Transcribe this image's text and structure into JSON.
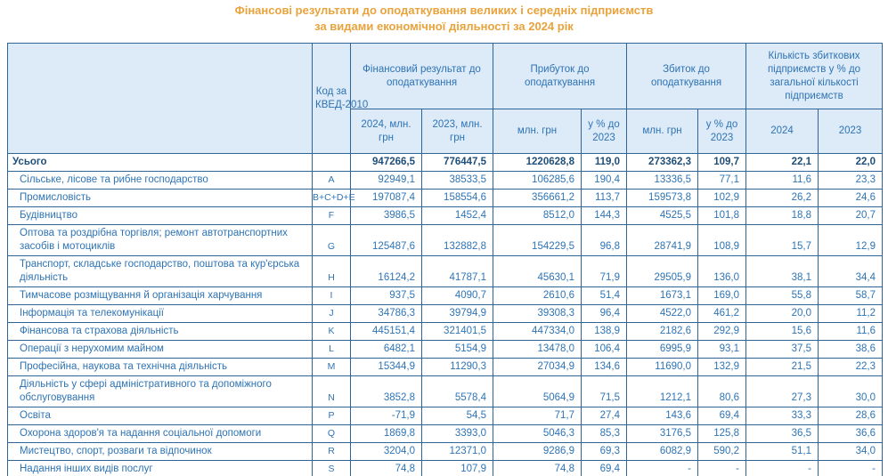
{
  "title": {
    "line1": "Фінансові результати до оподаткування великих і середніх підприємств",
    "line2": "за видами економічної діяльності за 2024 рік"
  },
  "colors": {
    "title": "#E9A33C",
    "border": "#2E6496",
    "header_bg": "#DDEAF7",
    "text": "#2E74B5",
    "text_dark": "#1F4E79"
  },
  "header": {
    "activity_label": "",
    "kved_label": "Код за КВЕД-2010",
    "groups": [
      {
        "label": "Фінансовий результат до оподаткування",
        "subs": [
          "2024, млн. грн",
          "2023, млн. грн"
        ]
      },
      {
        "label": "Прибуток до оподаткування",
        "subs": [
          "млн. грн",
          "у % до 2023"
        ]
      },
      {
        "label": "Збиток до оподаткування",
        "subs": [
          "млн. грн",
          "у % до 2023"
        ]
      },
      {
        "label": "Кількість збиткових підприємств у % до загальної кількості підприємств",
        "subs": [
          "2024",
          "2023"
        ]
      }
    ]
  },
  "chart_data": {
    "type": "table",
    "title": "Фінансові результати до оподаткування великих і середніх підприємств за видами економічної діяльності за 2024 рік",
    "columns": [
      "Вид економічної діяльності",
      "Код за КВЕД-2010",
      "Фінансовий результат до оподаткування — 2024, млн. грн",
      "Фінансовий результат до оподаткування — 2023, млн. грн",
      "Прибуток до оподаткування — млн. грн",
      "Прибуток до оподаткування — у % до 2023",
      "Збиток до оподаткування — млн. грн",
      "Збиток до оподаткування — у % до 2023",
      "Кількість збиткових підприємств у % до загальної кількості підприємств — 2024",
      "Кількість збиткових підприємств у % до загальної кількості підприємств — 2023"
    ],
    "rows": [
      {
        "name": "Усього",
        "code": "",
        "bold": true,
        "indent": false,
        "values": [
          "947266,5",
          "776447,5",
          "1220628,8",
          "119,0",
          "273362,3",
          "109,7",
          "22,1",
          "22,0"
        ]
      },
      {
        "name": "Сільське, лісове та рибне господарство",
        "code": "A",
        "bold": false,
        "indent": true,
        "values": [
          "92949,1",
          "38533,5",
          "106285,6",
          "190,4",
          "13336,5",
          "77,1",
          "11,6",
          "23,3"
        ]
      },
      {
        "name": "Промисловість",
        "code": "B+C+D+E",
        "bold": false,
        "indent": true,
        "values": [
          "197087,4",
          "158554,6",
          "356661,2",
          "113,7",
          "159573,8",
          "102,9",
          "26,2",
          "24,6"
        ]
      },
      {
        "name": "Будівництво",
        "code": "F",
        "bold": false,
        "indent": true,
        "values": [
          "3986,5",
          "1452,4",
          "8512,0",
          "144,3",
          "4525,5",
          "101,8",
          "18,8",
          "20,7"
        ]
      },
      {
        "name": "Оптова та роздрібна торгівля; ремонт автотранспортних засобів і мотоциклів",
        "code": "G",
        "bold": false,
        "indent": true,
        "values": [
          "125487,6",
          "132882,8",
          "154229,5",
          "96,8",
          "28741,9",
          "108,9",
          "15,7",
          "12,9"
        ]
      },
      {
        "name": "Транспорт, складське господарство, поштова  та кур'єрська діяльність",
        "code": "H",
        "bold": false,
        "indent": true,
        "values": [
          "16124,2",
          "41787,1",
          "45630,1",
          "71,9",
          "29505,9",
          "136,0",
          "38,1",
          "34,4"
        ]
      },
      {
        "name": "Тимчасове розміщування й організація харчування",
        "code": "I",
        "bold": false,
        "indent": true,
        "values": [
          "937,5",
          "4090,7",
          "2610,6",
          "51,4",
          "1673,1",
          "169,0",
          "55,8",
          "58,7"
        ]
      },
      {
        "name": "Інформація та телекомунікації",
        "code": "J",
        "bold": false,
        "indent": true,
        "values": [
          "34786,3",
          "39794,9",
          "39308,3",
          "96,4",
          "4522,0",
          "461,2",
          "20,0",
          "11,2"
        ]
      },
      {
        "name": "Фінансова та страхова діяльність",
        "code": "K",
        "bold": false,
        "indent": true,
        "values": [
          "445151,4",
          "321401,5",
          "447334,0",
          "138,9",
          "2182,6",
          "292,9",
          "15,6",
          "11,6"
        ]
      },
      {
        "name": "Операції з нерухомим майном",
        "code": "L",
        "bold": false,
        "indent": true,
        "values": [
          "6482,1",
          "5154,9",
          "13478,0",
          "106,4",
          "6995,9",
          "93,1",
          "37,5",
          "38,6"
        ]
      },
      {
        "name": "Професійна, наукова та технічна діяльність",
        "code": "M",
        "bold": false,
        "indent": true,
        "values": [
          "15344,9",
          "11290,3",
          "27034,9",
          "134,6",
          "11690,0",
          "132,9",
          "21,5",
          "22,3"
        ]
      },
      {
        "name": "Діяльність у сфері адміністративного  та допоміжного обслуговування",
        "code": "N",
        "bold": false,
        "indent": true,
        "values": [
          "3852,8",
          "5578,4",
          "5064,9",
          "71,5",
          "1212,1",
          "80,6",
          "27,3",
          "30,0"
        ]
      },
      {
        "name": "Освіта",
        "code": "P",
        "bold": false,
        "indent": true,
        "values": [
          "-71,9",
          "54,5",
          "71,7",
          "27,4",
          "143,6",
          "69,4",
          "33,3",
          "28,6"
        ]
      },
      {
        "name": "Охорона здоров'я та надання соціальної допомоги",
        "code": "Q",
        "bold": false,
        "indent": true,
        "values": [
          "1869,8",
          "3393,0",
          "5046,3",
          "85,3",
          "3176,5",
          "125,8",
          "36,5",
          "36,6"
        ]
      },
      {
        "name": "Мистецтво, спорт, розваги та відпочинок",
        "code": "R",
        "bold": false,
        "indent": true,
        "values": [
          "3204,0",
          "12371,0",
          "9286,9",
          "69,3",
          "6082,9",
          "590,2",
          "51,1",
          "34,0"
        ]
      },
      {
        "name": "Надання інших видів послуг",
        "code": "S",
        "bold": false,
        "indent": true,
        "values": [
          "74,8",
          "107,9",
          "74,8",
          "69,4",
          "-",
          "-",
          "-",
          "-"
        ]
      }
    ]
  }
}
